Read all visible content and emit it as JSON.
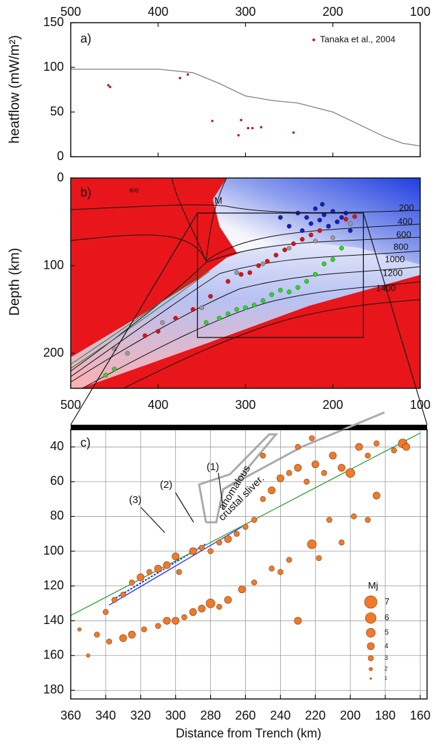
{
  "chart_data": [
    {
      "type": "scatter",
      "label": "a)",
      "ylabel": "heatflow (mW/m²)",
      "xlim": [
        500,
        100
      ],
      "xticks": [
        500,
        400,
        300,
        200,
        100
      ],
      "xaxis": "top",
      "ylim": [
        0,
        150
      ],
      "yticks": [
        0,
        50,
        100,
        150
      ],
      "series": [
        {
          "name": "Tanaka et al., 2004",
          "color": "#b22222",
          "x": [
            457,
            455,
            375,
            366,
            338,
            305,
            308,
            297,
            292,
            282,
            245
          ],
          "values": [
            80,
            78,
            88,
            92,
            40,
            41,
            24,
            32,
            32,
            33,
            27
          ]
        }
      ],
      "lines": [
        {
          "color": "#808080",
          "x": [
            500,
            400,
            360,
            330,
            300,
            270,
            240,
            200,
            170,
            140,
            120,
            100
          ],
          "values": [
            98,
            98,
            94,
            82,
            68,
            63,
            60,
            50,
            36,
            22,
            15,
            12
          ]
        }
      ]
    },
    {
      "type": "scatter",
      "label": "b)",
      "ylabel": "Depth (km)",
      "y_inverted": true,
      "xlim": [
        500,
        100
      ],
      "xticks": [
        500,
        400,
        300,
        200,
        100
      ],
      "xaxis": "bottom",
      "ylim": [
        0,
        240
      ],
      "yticks": [
        0,
        100,
        200
      ],
      "annotations": [
        "M"
      ],
      "isotherm_labels": [
        600,
        200,
        400,
        600,
        800,
        1000,
        1200,
        1400
      ],
      "inset": {
        "x": [
          355,
          165
        ],
        "y": [
          40,
          182
        ]
      },
      "series": [
        {
          "color": "#e01010",
          "x": [
            415,
            400,
            380,
            360,
            340,
            320,
            305,
            295,
            285,
            275,
            265,
            255,
            245,
            235,
            225,
            215,
            205,
            195,
            185,
            175
          ],
          "values": [
            180,
            175,
            160,
            150,
            135,
            118,
            110,
            108,
            100,
            95,
            88,
            82,
            75,
            70,
            65,
            60,
            55,
            50,
            47,
            44
          ]
        },
        {
          "color": "#9a9a9a",
          "x": [
            450,
            435,
            395,
            350,
            310,
            280,
            250,
            220,
            200,
            180
          ],
          "values": [
            195,
            200,
            165,
            148,
            108,
            98,
            80,
            72,
            68,
            52
          ]
        },
        {
          "color": "#22dd22",
          "x": [
            460,
            450,
            345,
            330,
            320,
            310,
            300,
            290,
            280,
            270,
            260,
            250,
            240,
            230,
            220,
            210,
            200,
            190
          ],
          "values": [
            225,
            218,
            165,
            160,
            155,
            150,
            148,
            145,
            140,
            133,
            128,
            130,
            125,
            118,
            110,
            98,
            93,
            80
          ]
        },
        {
          "color": "#1020c0",
          "x": [
            240,
            230,
            225,
            220,
            215,
            210,
            205,
            200,
            195,
            190,
            185,
            180,
            260,
            250,
            212,
            235
          ],
          "values": [
            40,
            45,
            52,
            35,
            48,
            42,
            55,
            38,
            50,
            45,
            40,
            60,
            45,
            55,
            30,
            60
          ]
        }
      ]
    },
    {
      "type": "bubble",
      "label": "c)",
      "xlabel": "Distance from Trench (km)",
      "y_inverted": true,
      "grid": true,
      "xlim": [
        360,
        160
      ],
      "xticks": [
        360,
        340,
        320,
        300,
        280,
        260,
        240,
        220,
        200,
        180,
        160
      ],
      "xaxis": "bottom",
      "ylim": [
        30,
        185
      ],
      "yticks": [
        40,
        60,
        80,
        100,
        120,
        140,
        160,
        180
      ],
      "annotations": [
        "(1)",
        "(2)",
        "(3)",
        "anomalous",
        "crustal sliver."
      ],
      "legend_title": "Mj",
      "legend_sizes": [
        7,
        6,
        5,
        4,
        3,
        2,
        1
      ],
      "color": "#f07a2a",
      "x": [
        355,
        350,
        345,
        340,
        335,
        330,
        325,
        320,
        315,
        310,
        305,
        300,
        298,
        290,
        285,
        280,
        275,
        270,
        265,
        260,
        255,
        250,
        245,
        240,
        235,
        230,
        225,
        220,
        215,
        210,
        205,
        200,
        195,
        190,
        185,
        175,
        170,
        168,
        230,
        222,
        250,
        338,
        330,
        325,
        318,
        310,
        305,
        300,
        295,
        290,
        285,
        280,
        275,
        270,
        262,
        255,
        245,
        240,
        235,
        222,
        218,
        212,
        205,
        198,
        190,
        185,
        230
      ],
      "values": [
        145,
        160,
        148,
        135,
        128,
        125,
        118,
        115,
        112,
        110,
        108,
        103,
        112,
        100,
        98,
        100,
        95,
        93,
        90,
        86,
        82,
        70,
        65,
        58,
        55,
        52,
        60,
        50,
        55,
        45,
        52,
        55,
        40,
        45,
        38,
        42,
        38,
        40,
        40,
        35,
        45,
        152,
        150,
        148,
        145,
        143,
        140,
        140,
        138,
        135,
        133,
        130,
        132,
        128,
        122,
        118,
        110,
        112,
        105,
        96,
        104,
        82,
        95,
        80,
        82,
        68,
        140
      ],
      "sizes": [
        2,
        2,
        3,
        3,
        3,
        3,
        3,
        4,
        3,
        4,
        4,
        4,
        3,
        4,
        3,
        3,
        3,
        4,
        3,
        3,
        3,
        3,
        4,
        4,
        3,
        4,
        3,
        4,
        3,
        4,
        4,
        5,
        4,
        3,
        3,
        3,
        5,
        4,
        3,
        3,
        3,
        3,
        4,
        4,
        3,
        3,
        4,
        4,
        3,
        4,
        4,
        5,
        3,
        4,
        4,
        3,
        3,
        3,
        3,
        5,
        3,
        3,
        3,
        3,
        3,
        4,
        4
      ],
      "lines": [
        {
          "color": "#1a2cff",
          "x": [
            338,
            262
          ],
          "values": [
            131,
            86
          ]
        },
        {
          "color": "#1a2cff",
          "x": [
            336,
            283
          ],
          "values": [
            128,
            96
          ],
          "dashed": true
        },
        {
          "color": "#2a9d2a",
          "x": [
            360,
            160
          ],
          "values": [
            137,
            32
          ]
        }
      ]
    }
  ]
}
